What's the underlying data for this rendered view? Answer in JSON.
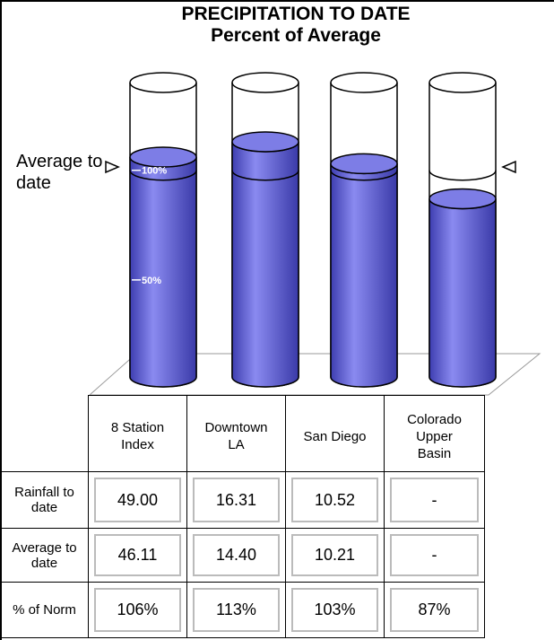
{
  "chart_data": {
    "type": "cylinder",
    "title": "PRECIPITATION TO DATE",
    "subtitle": "Percent of Average",
    "annotation": "Average to date",
    "categories": [
      "8 Station Index",
      "Downtown LA",
      "San Diego",
      "Colorado Upper Basin"
    ],
    "values": [
      106,
      113,
      103,
      87
    ],
    "value_labels": [
      "106%",
      "113%",
      "103%",
      "87%"
    ],
    "value_row_label": "% of Norm",
    "color": "#5d5dd8",
    "ylim": [
      0,
      140
    ],
    "yticks": [
      {
        "value": 100,
        "label": "100%"
      },
      {
        "value": 50,
        "label": "50%"
      }
    ],
    "rows": [
      {
        "label": "Rainfall to date",
        "cells": [
          "49.00",
          "16.31",
          "10.52",
          "-"
        ]
      },
      {
        "label": "Average to date",
        "cells": [
          "46.11",
          "14.40",
          "10.21",
          "-"
        ]
      }
    ]
  }
}
